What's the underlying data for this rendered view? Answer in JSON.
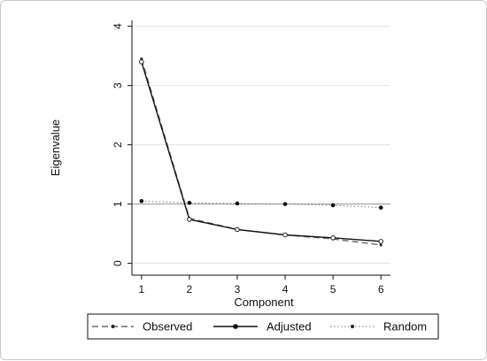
{
  "chart_data": {
    "type": "line",
    "xlabel": "Component",
    "ylabel": "Eigenvalue",
    "x": [
      1,
      2,
      3,
      4,
      5,
      6
    ],
    "xlim": [
      0.8,
      6.2
    ],
    "ylim": [
      -0.2,
      4.1
    ],
    "yticks": [
      0,
      1,
      2,
      3,
      4
    ],
    "grid": true,
    "reference_line": 1,
    "legend_position": "bottom",
    "series": [
      {
        "name": "Observed",
        "style": "dashed",
        "marker": "small-dot",
        "color": "#6a6a6a",
        "values": [
          3.45,
          0.76,
          0.57,
          0.48,
          0.41,
          0.31
        ]
      },
      {
        "name": "Adjusted",
        "style": "solid",
        "marker": "open-circle",
        "color": "#111111",
        "values": [
          3.4,
          0.74,
          0.57,
          0.48,
          0.43,
          0.37
        ]
      },
      {
        "name": "Random",
        "style": "dotted",
        "marker": "dot",
        "color": "#777777",
        "values": [
          1.05,
          1.02,
          1.01,
          1.0,
          0.98,
          0.94
        ]
      }
    ]
  }
}
